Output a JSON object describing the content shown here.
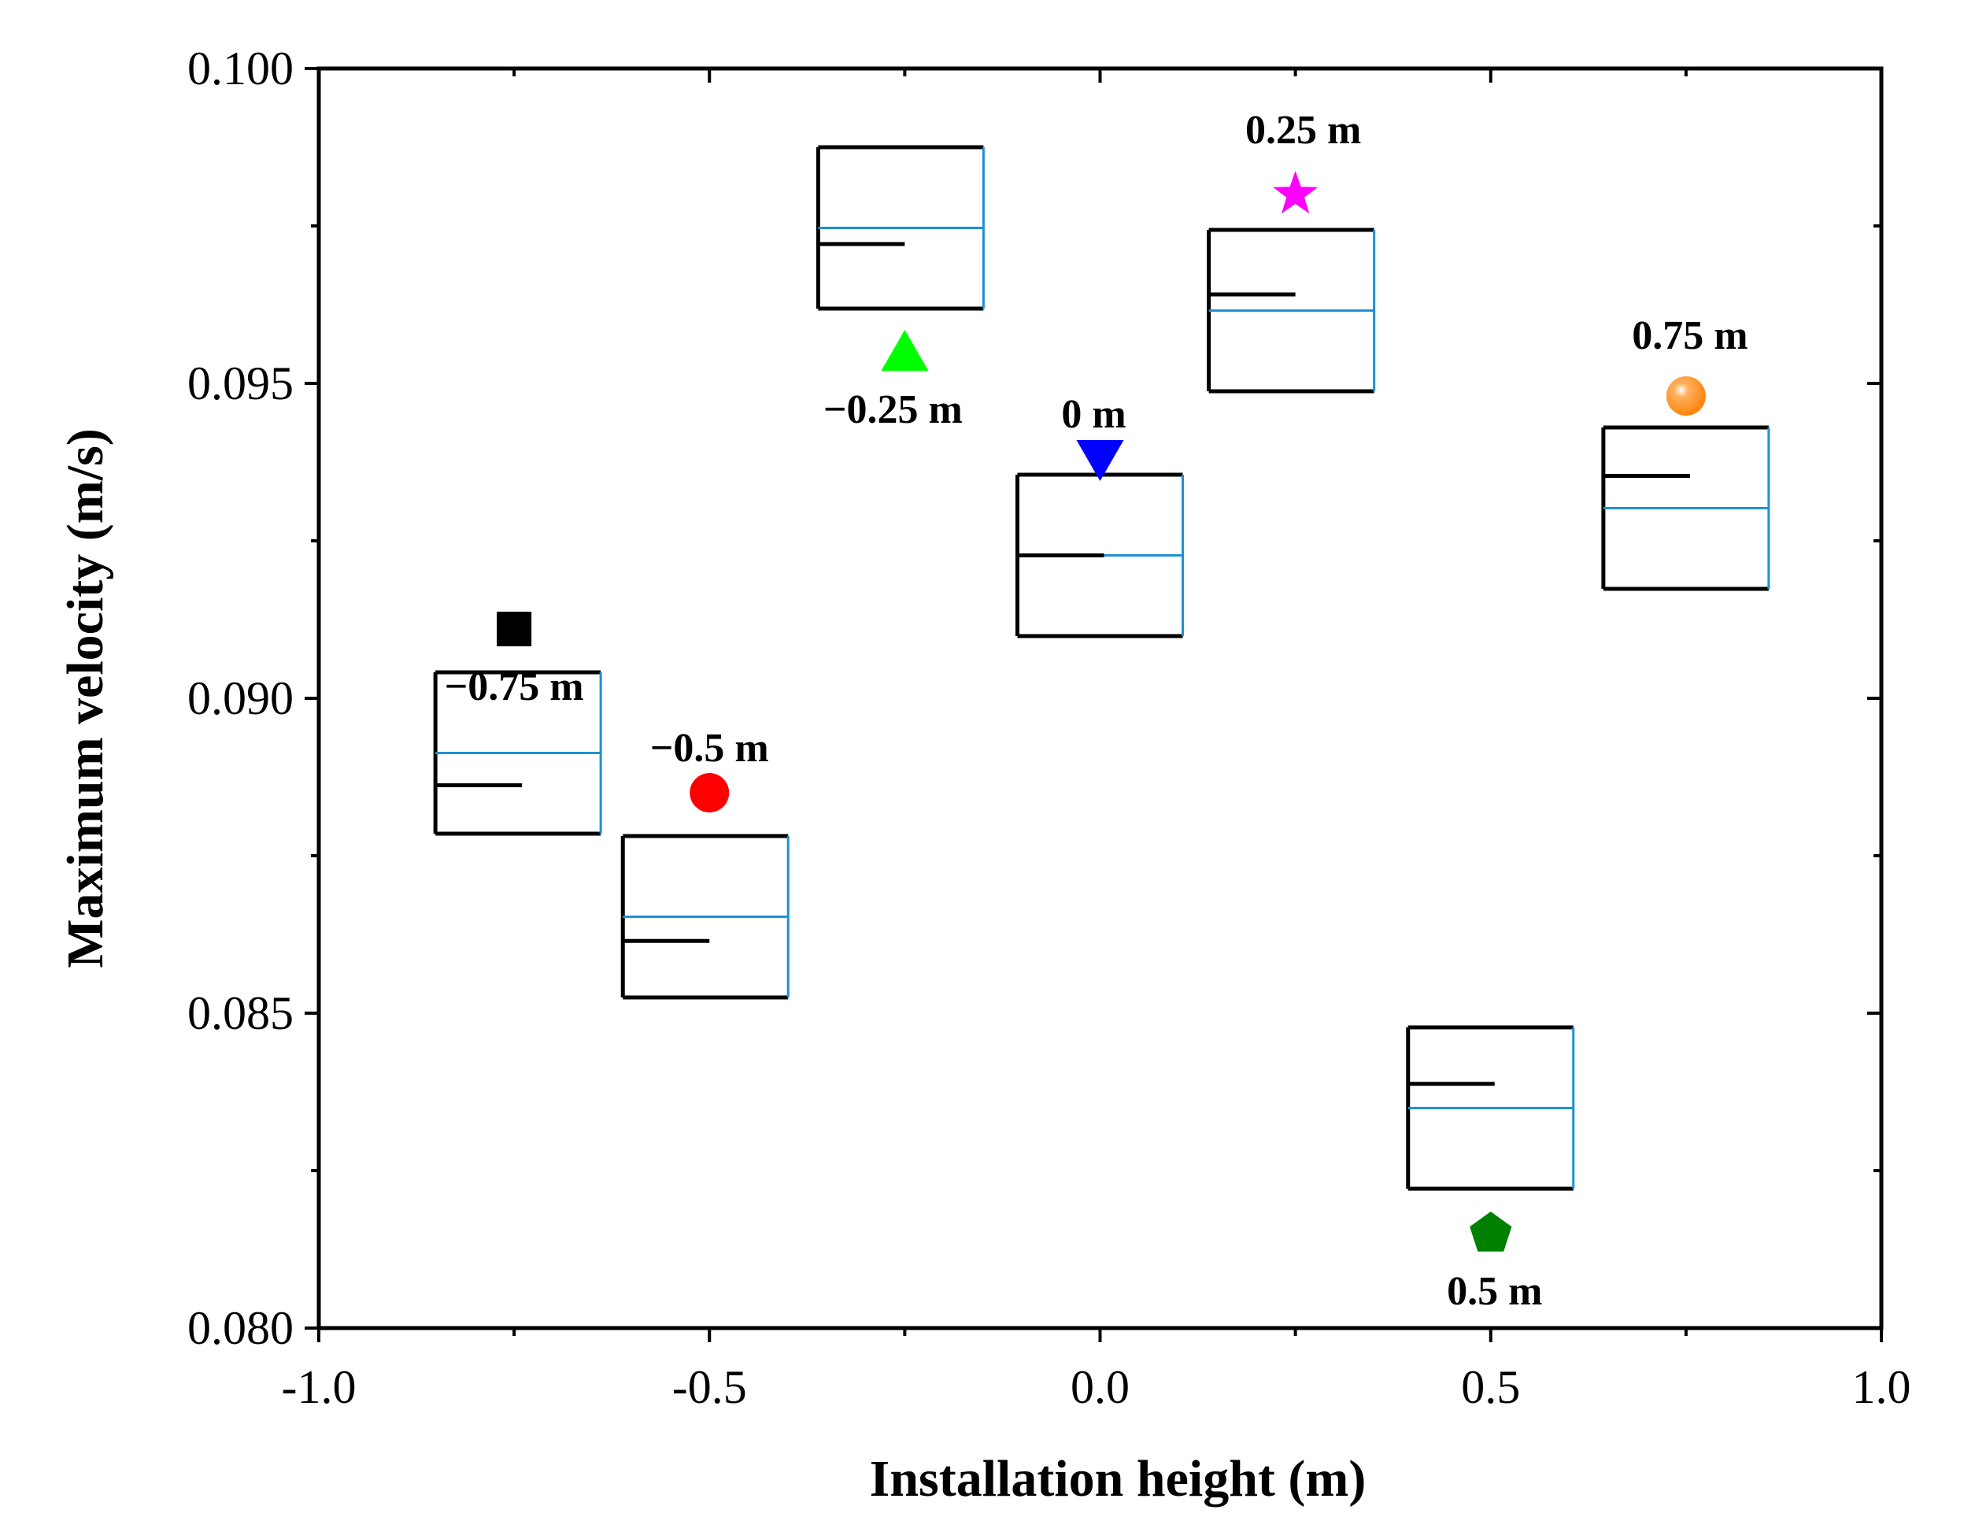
{
  "chart_data": {
    "type": "scatter",
    "title": "",
    "xlabel": "Installation height (m)",
    "ylabel": "Maximum  velocity (m/s)",
    "xlim": [
      -1.0,
      1.0
    ],
    "ylim": [
      0.08,
      0.1
    ],
    "xticks": [
      -1.0,
      -0.5,
      0.0,
      0.5,
      1.0
    ],
    "xtick_labels": [
      "-1.0",
      "-0.5",
      "0.0",
      "0.5",
      "1.0"
    ],
    "yticks": [
      0.08,
      0.085,
      0.09,
      0.095,
      0.1
    ],
    "ytick_labels": [
      "0.080",
      "0.085",
      "0.090",
      "0.095",
      "0.100"
    ],
    "grid": false,
    "legend": "none",
    "points": [
      {
        "x": -0.75,
        "y": 0.0911,
        "label": "−0.75 m",
        "marker": "square",
        "color": "#000000"
      },
      {
        "x": -0.5,
        "y": 0.0885,
        "label": "−0.5 m",
        "marker": "circle",
        "color": "#ff0000"
      },
      {
        "x": -0.25,
        "y": 0.0955,
        "label": "−0.25 m",
        "marker": "triangle-up",
        "color": "#00ff00"
      },
      {
        "x": 0.0,
        "y": 0.0938,
        "label": "0 m",
        "marker": "triangle-down",
        "color": "#0000ff"
      },
      {
        "x": 0.25,
        "y": 0.098,
        "label": "0.25 m",
        "marker": "star",
        "color": "#ff00ff"
      },
      {
        "x": 0.5,
        "y": 0.0815,
        "label": "0.5 m",
        "marker": "pentagon",
        "color": "#008000"
      },
      {
        "x": 0.75,
        "y": 0.0948,
        "label": "0.75 m",
        "marker": "sphere",
        "color": "#ff8000"
      }
    ],
    "insets": [
      {
        "name": "-0.75",
        "water_level": 0.5,
        "device_level": 0.3
      },
      {
        "name": "-0.5",
        "water_level": 0.5,
        "device_level": 0.35
      },
      {
        "name": "-0.25",
        "water_level": 0.5,
        "device_level": 0.4
      },
      {
        "name": "0",
        "water_level": 0.5,
        "device_level": 0.5
      },
      {
        "name": "0.25",
        "water_level": 0.5,
        "device_level": 0.6
      },
      {
        "name": "0.5",
        "water_level": 0.5,
        "device_level": 0.65
      },
      {
        "name": "0.75",
        "water_level": 0.5,
        "device_level": 0.7
      }
    ],
    "inset_water_color": "#1e90d6",
    "inset_device_color": "#000000"
  }
}
